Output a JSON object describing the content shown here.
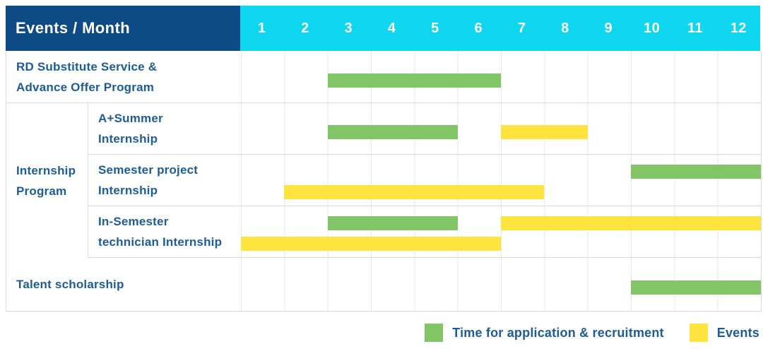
{
  "table": {
    "header": {
      "label": "Events / Month",
      "months": [
        "1",
        "2",
        "3",
        "4",
        "5",
        "6",
        "7",
        "8",
        "9",
        "10",
        "11",
        "12"
      ]
    },
    "group": {
      "label_lines": [
        "Internship",
        "Program"
      ]
    },
    "rows": [
      {
        "label_lines": [
          "RD Substitute Service &",
          "Advance Offer Program"
        ],
        "grouped": false
      },
      {
        "label_lines": [
          "A+Summer",
          "Internship"
        ],
        "grouped": true
      },
      {
        "label_lines": [
          "Semester project",
          "Internship"
        ],
        "grouped": true
      },
      {
        "label_lines": [
          "In-Semester",
          "technician Internship"
        ],
        "grouped": true
      },
      {
        "label_lines": [
          "Talent scholarship"
        ],
        "grouped": false
      }
    ]
  },
  "legend": {
    "items": [
      {
        "color_key": "green",
        "label": "Time for application & recruitment"
      },
      {
        "color_key": "yellow",
        "label": "Events"
      }
    ]
  },
  "colors": {
    "header_bg": "#0E4B86",
    "months_bg": "#0ED6EE",
    "green": "#82C566",
    "yellow": "#FFE33E",
    "label_text": "#1D5C99",
    "grid_line": "#E6E6E6",
    "row_border": "#DADADA",
    "header_text": "#FFFFFF"
  },
  "chart_data": {
    "type": "bar",
    "subtype": "gantt",
    "title": "Events / Month",
    "x_unit": "month",
    "x_range": [
      1,
      12
    ],
    "legend_entries": [
      "Time for application & recruitment",
      "Events"
    ],
    "rows": [
      {
        "group": "",
        "label": "RD Substitute Service & Advance Offer Program",
        "bars": [
          {
            "category": "Time for application & recruitment",
            "start_month": 3,
            "end_month": 6
          }
        ]
      },
      {
        "group": "Internship Program",
        "label": "A+Summer Internship",
        "bars": [
          {
            "category": "Time for application & recruitment",
            "start_month": 3,
            "end_month": 5
          },
          {
            "category": "Events",
            "start_month": 7,
            "end_month": 8
          }
        ]
      },
      {
        "group": "Internship Program",
        "label": "Semester project Internship",
        "bars": [
          {
            "category": "Time for application & recruitment",
            "start_month": 10,
            "end_month": 12
          },
          {
            "category": "Events",
            "start_month": 2,
            "end_month": 7
          }
        ]
      },
      {
        "group": "Internship Program",
        "label": "In-Semester technician Internship",
        "bars": [
          {
            "category": "Time for application & recruitment",
            "start_month": 3,
            "end_month": 5
          },
          {
            "category": "Events",
            "start_month": 7,
            "end_month": 12
          },
          {
            "category": "Events",
            "start_month": 1,
            "end_month": 6
          }
        ]
      },
      {
        "group": "",
        "label": "Talent scholarship",
        "bars": [
          {
            "category": "Time for application & recruitment",
            "start_month": 10,
            "end_month": 12
          }
        ]
      }
    ]
  }
}
